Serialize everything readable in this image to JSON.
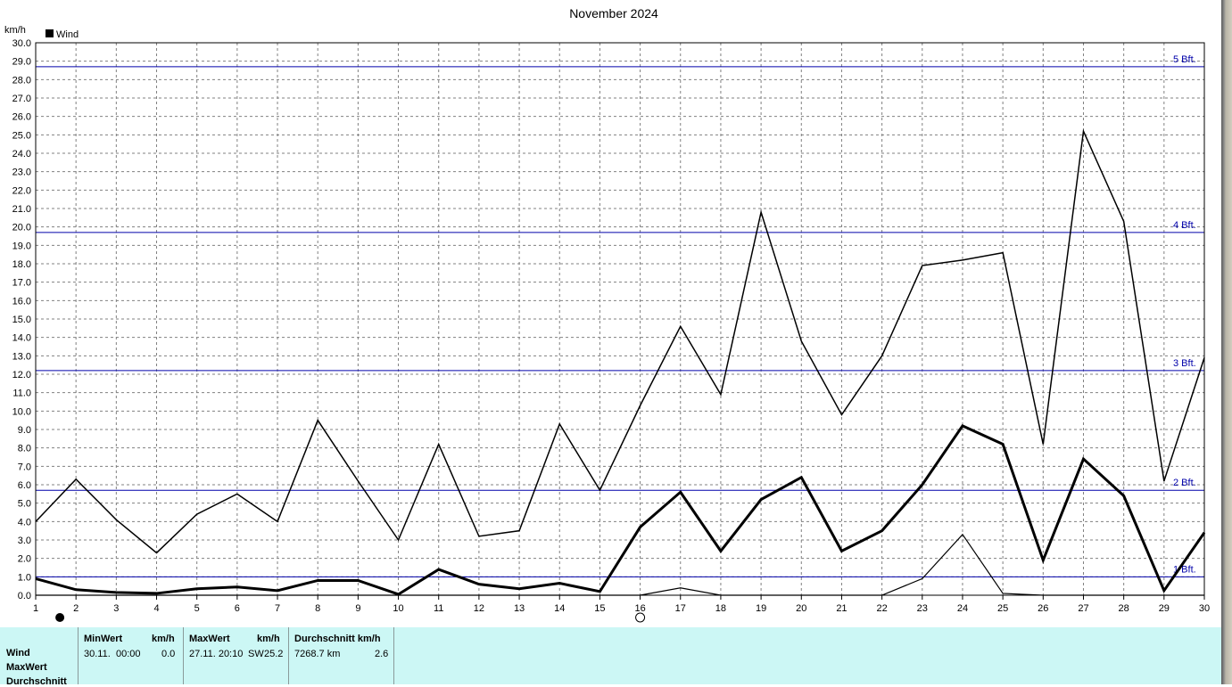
{
  "chart_data": {
    "type": "line",
    "title": "November 2024",
    "ylabel": "km/h",
    "legend": "Wind",
    "legend_position": "top-left",
    "grid": true,
    "ylim": [
      0,
      30
    ],
    "y_ticks": [
      "0.0",
      "1.0",
      "2.0",
      "3.0",
      "4.0",
      "5.0",
      "6.0",
      "7.0",
      "8.0",
      "9.0",
      "10.0",
      "11.0",
      "12.0",
      "13.0",
      "14.0",
      "15.0",
      "16.0",
      "17.0",
      "18.0",
      "19.0",
      "20.0",
      "21.0",
      "22.0",
      "23.0",
      "24.0",
      "25.0",
      "26.0",
      "27.0",
      "28.0",
      "29.0",
      "30.0"
    ],
    "x": [
      1,
      2,
      3,
      4,
      5,
      6,
      7,
      8,
      9,
      10,
      11,
      12,
      13,
      14,
      15,
      16,
      17,
      18,
      19,
      20,
      21,
      22,
      23,
      24,
      25,
      26,
      27,
      28,
      29,
      30
    ],
    "series": [
      {
        "values": [
          4.0,
          6.3,
          4.1,
          2.3,
          4.4,
          5.5,
          4.0,
          9.5,
          6.2,
          3.0,
          8.2,
          3.2,
          3.5,
          9.3,
          5.7,
          10.3,
          14.6,
          10.9,
          20.8,
          13.8,
          9.8,
          13.0,
          17.9,
          18.2,
          18.6,
          8.2,
          25.2,
          20.3,
          6.2,
          12.9
        ]
      },
      {
        "values": [
          0.9,
          0.3,
          0.15,
          0.1,
          0.35,
          0.45,
          0.25,
          0.8,
          0.8,
          0.05,
          1.4,
          0.6,
          0.35,
          0.65,
          0.2,
          3.7,
          5.6,
          2.4,
          5.2,
          6.4,
          2.4,
          3.5,
          6.0,
          9.2,
          8.2,
          1.9,
          7.4,
          5.4,
          0.25,
          3.4
        ]
      },
      {
        "values": [
          0.0,
          0.0,
          0.0,
          0.0,
          0.0,
          0.0,
          0.0,
          0.0,
          0.0,
          0.0,
          0.0,
          0.0,
          0.0,
          0.0,
          0.0,
          0.0,
          0.4,
          0.0,
          0.0,
          0.0,
          0.0,
          0.0,
          0.9,
          3.3,
          0.1,
          0.0,
          0.0,
          0.0,
          0.0,
          0.0
        ]
      }
    ],
    "reference_lines": [
      {
        "label": "1 Bft.",
        "value": 1.0
      },
      {
        "label": "2 Bft.",
        "value": 5.7
      },
      {
        "label": "3 Bft.",
        "value": 12.2
      },
      {
        "label": "4 Bft.",
        "value": 19.7
      },
      {
        "label": "5 Bft.",
        "value": 28.7
      }
    ],
    "colors": {
      "series": "#000000",
      "reference": "#0000aa",
      "grid": "#808080",
      "stats_bg": "#ccf7f5"
    },
    "moon_phases": [
      {
        "x": 1.6,
        "icon": "full-moon-icon"
      },
      {
        "x": 16.0,
        "icon": "new-moon-icon"
      }
    ]
  },
  "stats": {
    "row_labels": [
      "Wind",
      "MaxWert",
      "Durchschnitt"
    ],
    "min": {
      "header": "MinWert",
      "unit": "km/h",
      "date": "30.11.",
      "time": "00:00",
      "value": "0.0"
    },
    "max": {
      "header": "MaxWert",
      "unit": "km/h",
      "datetime": "27.11. 20:10",
      "dir": "SW",
      "value": "25.2"
    },
    "avg": {
      "header": "Durchschnitt km/h",
      "distance": "7268.7 km",
      "value": "2.6"
    }
  }
}
